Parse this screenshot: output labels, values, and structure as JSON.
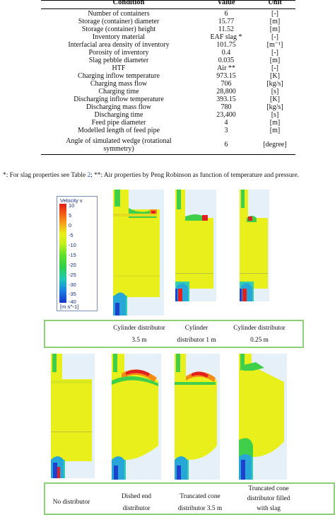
{
  "table": {
    "headers": {
      "condition": "Condition",
      "value": "Value",
      "unit": "Unit"
    },
    "rows": [
      {
        "condition": "Number of containers",
        "value": "6",
        "unit": "[-]"
      },
      {
        "condition": "Storage (container) diameter",
        "value": "15.77",
        "unit": "[m]"
      },
      {
        "condition": "Storage (container) height",
        "value": "11.52",
        "unit": "[m]"
      },
      {
        "condition": "Inventory material",
        "value": "EAF slag *",
        "unit": "[-]"
      },
      {
        "condition": "Interfacial area density of inventory",
        "value": "101.75",
        "unit": "[m⁻¹]"
      },
      {
        "condition": "Porosity of inventory",
        "value": "0.4",
        "unit": "[-]"
      },
      {
        "condition": "Slag pebble diameter",
        "value": "0.035",
        "unit": "[m]"
      },
      {
        "condition": "HTF",
        "value": "Air **",
        "unit": "[-]"
      },
      {
        "condition": "Charging inflow temperature",
        "value": "973.15",
        "unit": "[K]"
      },
      {
        "condition": "Charging mass flow",
        "value": "706",
        "unit": "[kg/s]"
      },
      {
        "condition": "Charging time",
        "value": "28,800",
        "unit": "[s]"
      },
      {
        "condition": "Discharging inflow temperature",
        "value": "393.15",
        "unit": "[K]"
      },
      {
        "condition": "Discharging mass flow",
        "value": "780",
        "unit": "[kg/s]"
      },
      {
        "condition": "Discharging time",
        "value": "23,400",
        "unit": "[s]"
      },
      {
        "condition": "Feed pipe diameter",
        "value": "4",
        "unit": "[m]"
      },
      {
        "condition": "Modelled length of feed pipe",
        "value": "3",
        "unit": "[m]"
      }
    ],
    "last_row": {
      "condition_line1": "Angle of simulated wedge (rotational",
      "condition_line2": "symmetry)",
      "value": "6",
      "unit": "[degree]"
    }
  },
  "footnote": {
    "before": "*: For slag properties see Table ",
    "ref": "2",
    "after": "; **: Air properties by Peng Robinson as function of temperature and pressure."
  },
  "legend": {
    "title": "Velocity v",
    "ticks": [
      "10",
      "5",
      "0",
      "-5",
      "-10",
      "-15",
      "-20",
      "-25",
      "-30",
      "-35",
      "-40"
    ],
    "unit": "[m s^-1]",
    "colors": [
      "#e21d1d",
      "#f4a21a",
      "#e9ee1b",
      "#5fe02a",
      "#20c9b6",
      "#1533c9"
    ]
  },
  "captions_top": [
    {
      "line1": "Cylinder distributor",
      "line2": "3.5 m"
    },
    {
      "line1": "Cylinder",
      "line2": "distributor 1 m"
    },
    {
      "line1": "Cylinder distributor",
      "line2": "0.25 m"
    }
  ],
  "captions_bottom": [
    {
      "line1": "No distributor",
      "line2": ""
    },
    {
      "line1": "Dished end",
      "line2": "distributor"
    },
    {
      "line1": "Truncated cone",
      "line2": "distributor 3.5 m"
    },
    {
      "line1": "Truncated cone",
      "line2": "distributor filled",
      "line3": "with slag"
    }
  ]
}
